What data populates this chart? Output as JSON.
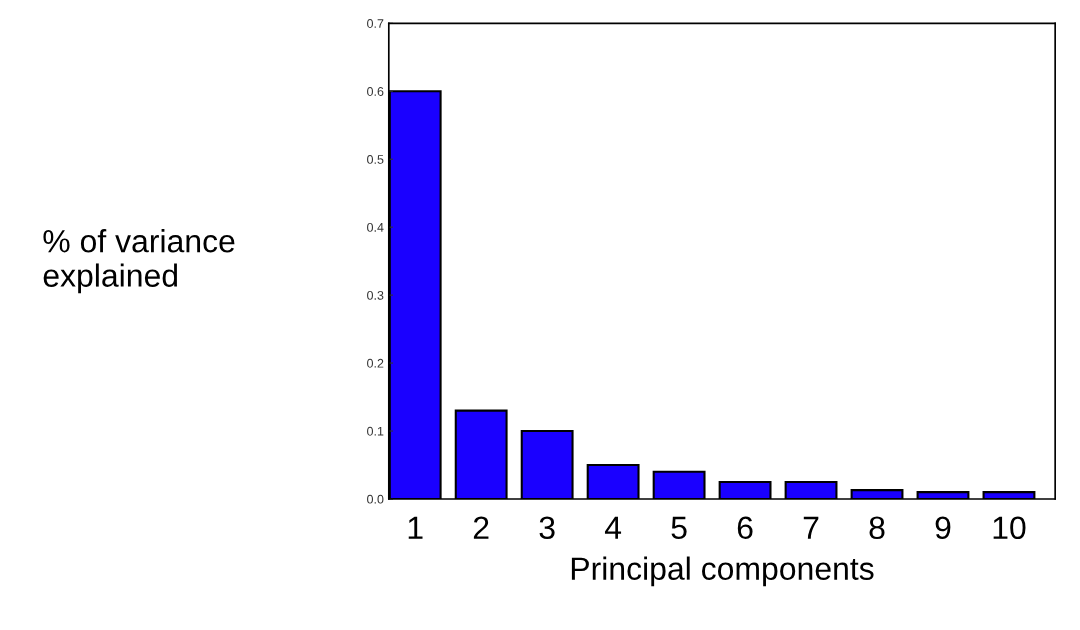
{
  "chart_data": {
    "type": "bar",
    "xlabel": "Principal components",
    "ylabel": "% of variance\nexplained",
    "categories": [
      "1",
      "2",
      "3",
      "4",
      "5",
      "6",
      "7",
      "8",
      "9",
      "10"
    ],
    "values": [
      0.6,
      0.13,
      0.1,
      0.05,
      0.04,
      0.025,
      0.025,
      0.013,
      0.01,
      0.01
    ],
    "color": "#1a00ff",
    "ylim": [
      0,
      0.7
    ],
    "yticks": [
      {
        "value": 0,
        "label": "0.0"
      },
      {
        "value": 0.1,
        "label": "0.1"
      },
      {
        "value": 0.2,
        "label": "0.2"
      },
      {
        "value": 0.3,
        "label": "0.3"
      },
      {
        "value": 0.4,
        "label": "0.4"
      },
      {
        "value": 0.5,
        "label": "0.5"
      },
      {
        "value": 0.6,
        "label": "0.6"
      },
      {
        "value": 0.7,
        "label": "0.7"
      }
    ],
    "grid": false,
    "legend": false
  }
}
